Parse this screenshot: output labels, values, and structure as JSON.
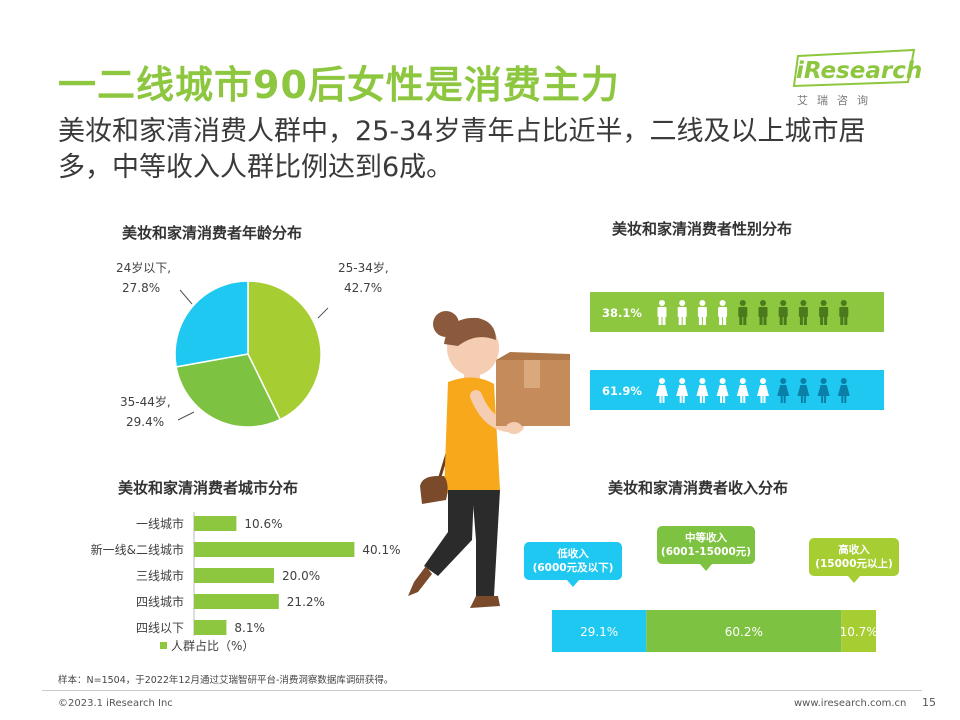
{
  "header": {
    "title": "一二线城市90后女性是消费主力",
    "subtitle": "美妆和家清消费人群中，25-34岁青年占比近半，二线及以上城市居多，中等收入人群比例达到6成。",
    "logo_text": "iResearch",
    "logo_sub": "艾瑞咨询",
    "brand_color": "#8dc63f"
  },
  "footer": {
    "note": "样本：N=1504，于2022年12月通过艾瑞智研平台-消费洞察数据库调研获得。",
    "copyright": "©2023.1 iResearch Inc",
    "website": "www.iresearch.com.cn",
    "page": "15"
  },
  "chart_data": [
    {
      "type": "pie",
      "title": "美妆和家清消费者年龄分布",
      "slices": [
        {
          "label": "25-34岁,",
          "value_label": "42.7%",
          "value": 42.7,
          "color": "#a6cd32"
        },
        {
          "label": "35-44岁,",
          "value_label": "29.4%",
          "value": 29.4,
          "color": "#7ec242"
        },
        {
          "label": "24岁以下,",
          "value_label": "27.8%",
          "value": 27.8,
          "color": "#1ec8f0"
        }
      ]
    },
    {
      "type": "bar",
      "title": "美妆和家清消费者性别分布",
      "categories": [
        "",
        ""
      ],
      "values": [
        38.1,
        61.9
      ],
      "value_labels": [
        "38.1%",
        "61.9%"
      ],
      "colors": [
        "#8dc63f",
        "#1ec8f0"
      ],
      "icons": [
        "male-icon",
        "female-icon"
      ],
      "icon_count": 10,
      "highlighted": [
        4,
        6
      ]
    },
    {
      "type": "bar",
      "title": "美妆和家清消费者城市分布",
      "categories": [
        "一线城市",
        "新一线&二线城市",
        "三线城市",
        "四线城市",
        "四线以下"
      ],
      "values": [
        10.6,
        40.1,
        20.0,
        21.2,
        8.1
      ],
      "value_labels": [
        "10.6%",
        "40.1%",
        "20.0%",
        "21.2%",
        "8.1%"
      ],
      "legend": "人群占比（%）",
      "color": "#8dc63f"
    },
    {
      "type": "bar",
      "title": "美妆和家清消费者收入分布",
      "categories": [
        "低收入\n(6000元及以下)",
        "中等收入\n(6001-15000元)",
        "高收入\n(15000元以上)"
      ],
      "values": [
        29.1,
        60.2,
        10.7
      ],
      "value_labels": [
        "29.1%",
        "60.2%",
        "10.7%"
      ],
      "colors": [
        "#1ec8f0",
        "#7ec242",
        "#a6cd32"
      ]
    }
  ]
}
